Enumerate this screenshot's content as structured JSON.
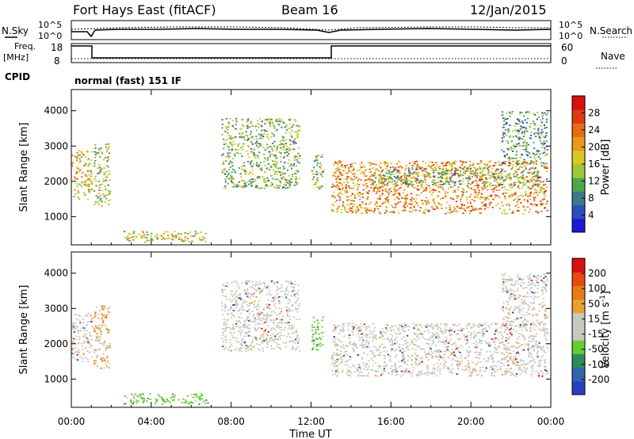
{
  "header": {
    "title": "Fort Hays East (fitACF)",
    "beam": "Beam 16",
    "date": "12/Jan/2015"
  },
  "top_panels": {
    "nsky_label": "N.Sky",
    "nsearch_label": "N.Search",
    "noise_ticks": [
      "10^5",
      "10^0"
    ],
    "freq_label_1": "Freq.",
    "freq_label_2": "[MHz]",
    "freq_ticks": [
      "18",
      "8"
    ],
    "nave_label": "Nave",
    "nave_ticks": [
      "60",
      "0"
    ],
    "cpid_label": "CPID",
    "cpid_value": "normal (fast) 151 IF"
  },
  "chart_data": [
    {
      "type": "heatmap",
      "name": "power",
      "ylabel": "Slant Range [km]",
      "ylim": [
        200,
        4600
      ],
      "yticks": [
        1000,
        2000,
        3000,
        4000
      ],
      "xlim": [
        0,
        24
      ],
      "xticks": [
        "00:00",
        "04:00",
        "08:00",
        "12:00",
        "16:00",
        "20:00",
        "00:00"
      ],
      "colorbar": {
        "label": "Power [dB]",
        "ticks": [
          "4",
          "8",
          "12",
          "16",
          "20",
          "24",
          "28"
        ],
        "colors": [
          "#1a1ad8",
          "#2c4cbf",
          "#3a7a8a",
          "#4fa64a",
          "#9cc83a",
          "#d8c81f",
          "#e89a18",
          "#e86a12",
          "#dd3a10",
          "#d81010"
        ]
      },
      "echo_regions": [
        {
          "t": [
            0.0,
            1.0
          ],
          "r": [
            1500,
            2900
          ],
          "level": 0.55
        },
        {
          "t": [
            1.1,
            1.9
          ],
          "r": [
            1300,
            3100
          ],
          "level": 0.45
        },
        {
          "t": [
            2.6,
            6.8
          ],
          "r": [
            300,
            600
          ],
          "level": 0.55
        },
        {
          "t": [
            7.5,
            11.4
          ],
          "r": [
            1800,
            3800
          ],
          "level": 0.4
        },
        {
          "t": [
            12.0,
            12.6
          ],
          "r": [
            1800,
            2800
          ],
          "level": 0.4
        },
        {
          "t": [
            13.0,
            23.8
          ],
          "r": [
            1100,
            2600
          ],
          "level": 0.7
        },
        {
          "t": [
            15.0,
            23.5
          ],
          "r": [
            1900,
            2400
          ],
          "level": 0.35
        },
        {
          "t": [
            21.5,
            23.8
          ],
          "r": [
            2500,
            4000
          ],
          "level": 0.3
        }
      ]
    },
    {
      "type": "heatmap",
      "name": "velocity",
      "ylabel": "Slant Range [km]",
      "xlabel": "Time UT",
      "ylim": [
        200,
        4600
      ],
      "yticks": [
        1000,
        2000,
        3000,
        4000
      ],
      "xlim": [
        0,
        24
      ],
      "xticks": [
        "00:00",
        "04:00",
        "08:00",
        "12:00",
        "16:00",
        "20:00",
        "00:00"
      ],
      "colorbar": {
        "label": "Velocity [m s-1]",
        "ticks": [
          "200",
          "100",
          "50",
          "15",
          "-15",
          "-50",
          "-100",
          "-200"
        ],
        "colors": [
          "#2a3fbf",
          "#3366aa",
          "#2e8a5a",
          "#66cc33",
          "#c8c8c0",
          "#c8c8c0",
          "#e8a030",
          "#e87a18",
          "#e84a12",
          "#d81010"
        ]
      },
      "echo_regions": [
        {
          "t": [
            0.0,
            1.0
          ],
          "r": [
            1500,
            2900
          ],
          "v": "grey"
        },
        {
          "t": [
            1.1,
            1.9
          ],
          "r": [
            1300,
            3100
          ],
          "v": "orange"
        },
        {
          "t": [
            2.6,
            6.8
          ],
          "r": [
            300,
            600
          ],
          "v": "green"
        },
        {
          "t": [
            7.5,
            11.4
          ],
          "r": [
            1800,
            3800
          ],
          "v": "grey"
        },
        {
          "t": [
            12.0,
            12.6
          ],
          "r": [
            1800,
            2800
          ],
          "v": "green"
        },
        {
          "t": [
            13.0,
            23.8
          ],
          "r": [
            1100,
            2600
          ],
          "v": "grey"
        },
        {
          "t": [
            21.5,
            23.8
          ],
          "r": [
            2500,
            4000
          ],
          "v": "grey"
        }
      ]
    }
  ]
}
